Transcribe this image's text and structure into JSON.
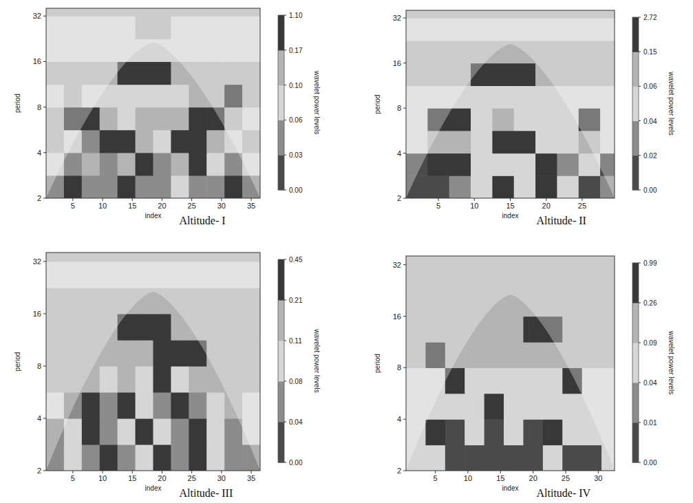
{
  "chart_data": [
    {
      "type": "heatmap",
      "title": "Altitude- I",
      "x_label": "index",
      "y_label": "period",
      "colorbar_label": "wavelet power levels",
      "log": "y",
      "xlim": [
        0.5,
        36.5
      ],
      "ylim": [
        2,
        36
      ],
      "xticks": [
        5,
        10,
        15,
        20,
        25,
        30,
        35
      ],
      "yticks": [
        2,
        4,
        8,
        16,
        32
      ],
      "x_edges": [
        0.5,
        3.5,
        6.5,
        9.5,
        12.5,
        15.5,
        18.5,
        21.5,
        24.5,
        27.5,
        30.5,
        33.5,
        36.5
      ],
      "y_edges": [
        2,
        2.83,
        4,
        5.66,
        8,
        11.3,
        16,
        22.6,
        32,
        36
      ],
      "cells": [
        [
          0.05,
          0.3,
          0.04,
          0.05,
          0.3,
          0.05,
          0.04,
          0.08,
          0.04,
          0.05,
          0.3,
          0.05
        ],
        [
          0.08,
          0.05,
          0.12,
          0.04,
          0.12,
          0.3,
          0.05,
          0.12,
          0.3,
          0.08,
          0.05,
          0.08
        ],
        [
          0.12,
          0.08,
          0.05,
          0.3,
          0.3,
          0.12,
          0.08,
          0.3,
          0.3,
          0.12,
          0.08,
          0.12
        ],
        [
          0.12,
          0.3,
          0.3,
          0.12,
          0.08,
          0.12,
          0.12,
          0.12,
          0.3,
          0.3,
          0.12,
          0.08
        ],
        [
          0.08,
          0.12,
          0.08,
          0.08,
          0.08,
          0.08,
          0.08,
          0.08,
          0.12,
          0.12,
          0.3,
          0.12
        ],
        [
          0.12,
          0.12,
          0.12,
          0.12,
          0.3,
          0.3,
          0.3,
          0.12,
          0.12,
          0.12,
          0.12,
          0.12
        ],
        [
          0.08,
          0.08,
          0.08,
          0.08,
          0.08,
          0.08,
          0.08,
          0.08,
          0.08,
          0.08,
          0.08,
          0.08
        ],
        [
          0.08,
          0.08,
          0.08,
          0.08,
          0.08,
          0.12,
          0.12,
          0.08,
          0.08,
          0.08,
          0.08,
          0.08
        ],
        [
          0.12,
          0.12,
          0.12,
          0.12,
          0.12,
          0.12,
          0.12,
          0.12,
          0.12,
          0.12,
          0.12,
          0.12
        ]
      ],
      "colorbar_ticks": [
        {
          "value": 0,
          "label": "0.00"
        },
        0.03,
        0.06,
        {
          "value": 0.1,
          "label": "0.10"
        },
        0.17,
        {
          "value": 1.1,
          "label": "1.10"
        }
      ],
      "colors": [
        "#4a4a4a",
        "#8c8c8c",
        "#d6d6d6",
        "#b4b4b4",
        "#383838"
      ]
    },
    {
      "type": "heatmap",
      "title": "Altitude- II",
      "x_label": "index",
      "y_label": "period",
      "colorbar_label": "wavelet power levels",
      "log": "y",
      "xlim": [
        0.5,
        29.5
      ],
      "ylim": [
        2,
        36
      ],
      "xticks": [
        5,
        10,
        15,
        20,
        25
      ],
      "yticks": [
        2,
        4,
        8,
        16,
        32
      ],
      "x_edges": [
        0.5,
        3.5,
        6.5,
        9.5,
        12.5,
        15.5,
        18.5,
        21.5,
        24.5,
        27.5,
        29.5
      ],
      "y_edges": [
        2,
        2.83,
        4,
        5.66,
        8,
        11.3,
        16,
        22.6,
        32,
        36
      ],
      "cells": [
        [
          0.01,
          0.01,
          0.03,
          0.05,
          0.3,
          0.05,
          0.3,
          0.05,
          0.01,
          0.03
        ],
        [
          0.01,
          0.3,
          0.3,
          0.05,
          0.05,
          0.05,
          0.3,
          0.03,
          0.05,
          0.01
        ],
        [
          0.05,
          0.1,
          0.1,
          0.05,
          0.3,
          0.3,
          0.05,
          0.05,
          0.1,
          0.05
        ],
        [
          0.05,
          0.3,
          0.3,
          0.05,
          0.1,
          0.05,
          0.05,
          0.05,
          0.3,
          0.05
        ],
        [
          0.05,
          0.05,
          0.05,
          0.05,
          0.05,
          0.05,
          0.05,
          0.05,
          0.05,
          0.05
        ],
        [
          0.1,
          0.1,
          0.1,
          0.3,
          0.3,
          0.3,
          0.1,
          0.1,
          0.1,
          0.1
        ],
        [
          0.1,
          0.1,
          0.1,
          0.1,
          0.1,
          0.1,
          0.1,
          0.1,
          0.1,
          0.1
        ],
        [
          0.05,
          0.05,
          0.05,
          0.05,
          0.05,
          0.05,
          0.05,
          0.05,
          0.05,
          0.05
        ],
        [
          0.1,
          0.1,
          0.1,
          0.1,
          0.1,
          0.1,
          0.1,
          0.1,
          0.1,
          0.1
        ]
      ],
      "colorbar_ticks": [
        {
          "value": 0,
          "label": "0.00"
        },
        0.02,
        0.04,
        0.06,
        0.15,
        2.72
      ],
      "colors": [
        "#4a4a4a",
        "#8c8c8c",
        "#d6d6d6",
        "#b4b4b4",
        "#383838"
      ]
    },
    {
      "type": "heatmap",
      "title": "Altitude- III",
      "x_label": "index",
      "y_label": "period",
      "colorbar_label": "wavelet power levels",
      "log": "y",
      "xlim": [
        0.5,
        36.5
      ],
      "ylim": [
        2,
        36
      ],
      "xticks": [
        5,
        10,
        15,
        20,
        25,
        30,
        35
      ],
      "yticks": [
        2,
        4,
        8,
        16,
        32
      ],
      "x_edges": [
        0.5,
        3.5,
        6.5,
        9.5,
        12.5,
        15.5,
        18.5,
        21.5,
        24.5,
        27.5,
        30.5,
        33.5,
        36.5
      ],
      "y_edges": [
        2,
        2.83,
        4,
        5.66,
        8,
        11.3,
        16,
        22.6,
        32,
        36
      ],
      "cells": [
        [
          0.06,
          0.1,
          0.06,
          0.3,
          0.06,
          0.1,
          0.3,
          0.06,
          0.3,
          0.1,
          0.06,
          0.06
        ],
        [
          0.06,
          0.1,
          0.3,
          0.06,
          0.1,
          0.3,
          0.1,
          0.06,
          0.3,
          0.1,
          0.06,
          0.1
        ],
        [
          0.1,
          0.06,
          0.3,
          0.06,
          0.3,
          0.1,
          0.06,
          0.3,
          0.06,
          0.1,
          0.15,
          0.1
        ],
        [
          0.15,
          0.15,
          0.15,
          0.1,
          0.15,
          0.1,
          0.3,
          0.1,
          0.15,
          0.15,
          0.15,
          0.15
        ],
        [
          0.15,
          0.15,
          0.15,
          0.15,
          0.15,
          0.15,
          0.3,
          0.3,
          0.3,
          0.15,
          0.15,
          0.15
        ],
        [
          0.15,
          0.15,
          0.15,
          0.15,
          0.3,
          0.3,
          0.3,
          0.15,
          0.15,
          0.15,
          0.15,
          0.15
        ],
        [
          0.15,
          0.15,
          0.15,
          0.15,
          0.15,
          0.15,
          0.15,
          0.15,
          0.15,
          0.15,
          0.15,
          0.15
        ],
        [
          0.1,
          0.1,
          0.1,
          0.1,
          0.1,
          0.1,
          0.1,
          0.1,
          0.1,
          0.1,
          0.1,
          0.1
        ],
        [
          0.15,
          0.15,
          0.15,
          0.15,
          0.15,
          0.15,
          0.15,
          0.15,
          0.15,
          0.15,
          0.15,
          0.15
        ]
      ],
      "colorbar_ticks": [
        {
          "value": 0,
          "label": "0.00"
        },
        0.04,
        0.08,
        0.11,
        0.21,
        0.45
      ],
      "colors": [
        "#4a4a4a",
        "#8c8c8c",
        "#d6d6d6",
        "#b4b4b4",
        "#383838"
      ]
    },
    {
      "type": "heatmap",
      "title": "Altitude- IV",
      "x_label": "index",
      "y_label": "period",
      "colorbar_label": "wavelet power levels",
      "log": "y",
      "xlim": [
        0.5,
        32.5
      ],
      "ylim": [
        2,
        36
      ],
      "xticks": [
        5,
        10,
        15,
        20,
        25,
        30
      ],
      "yticks": [
        2,
        4,
        8,
        16,
        32
      ],
      "x_edges": [
        0.5,
        3.5,
        6.5,
        9.5,
        12.5,
        15.5,
        18.5,
        21.5,
        24.5,
        27.5,
        30.5,
        32.5
      ],
      "y_edges": [
        2,
        2.83,
        4,
        5.66,
        8,
        11.3,
        16,
        22.6,
        32,
        36
      ],
      "cells": [
        [
          0.05,
          0.05,
          0.005,
          0.005,
          0.005,
          0.005,
          0.005,
          0.05,
          0.005,
          0.005,
          0.05
        ],
        [
          0.05,
          0.3,
          0.005,
          0.05,
          0.005,
          0.05,
          0.005,
          0.3,
          0.05,
          0.05,
          0.05
        ],
        [
          0.05,
          0.05,
          0.05,
          0.05,
          0.3,
          0.05,
          0.05,
          0.05,
          0.05,
          0.05,
          0.05
        ],
        [
          0.05,
          0.05,
          0.3,
          0.05,
          0.05,
          0.05,
          0.05,
          0.05,
          0.3,
          0.05,
          0.05
        ],
        [
          0.1,
          0.3,
          0.1,
          0.1,
          0.1,
          0.1,
          0.1,
          0.1,
          0.1,
          0.1,
          0.1
        ],
        [
          0.1,
          0.1,
          0.1,
          0.1,
          0.1,
          0.1,
          0.3,
          0.3,
          0.1,
          0.1,
          0.1
        ],
        [
          0.1,
          0.1,
          0.1,
          0.1,
          0.1,
          0.1,
          0.1,
          0.1,
          0.1,
          0.1,
          0.1
        ],
        [
          0.1,
          0.1,
          0.1,
          0.1,
          0.1,
          0.1,
          0.1,
          0.1,
          0.1,
          0.1,
          0.1
        ],
        [
          0.1,
          0.1,
          0.1,
          0.1,
          0.1,
          0.1,
          0.1,
          0.1,
          0.1,
          0.1,
          0.1
        ]
      ],
      "colorbar_ticks": [
        {
          "value": 0,
          "label": "0.00"
        },
        0.01,
        0.04,
        0.09,
        0.26,
        0.99
      ],
      "colors": [
        "#4a4a4a",
        "#8c8c8c",
        "#d6d6d6",
        "#b4b4b4",
        "#383838"
      ]
    }
  ]
}
